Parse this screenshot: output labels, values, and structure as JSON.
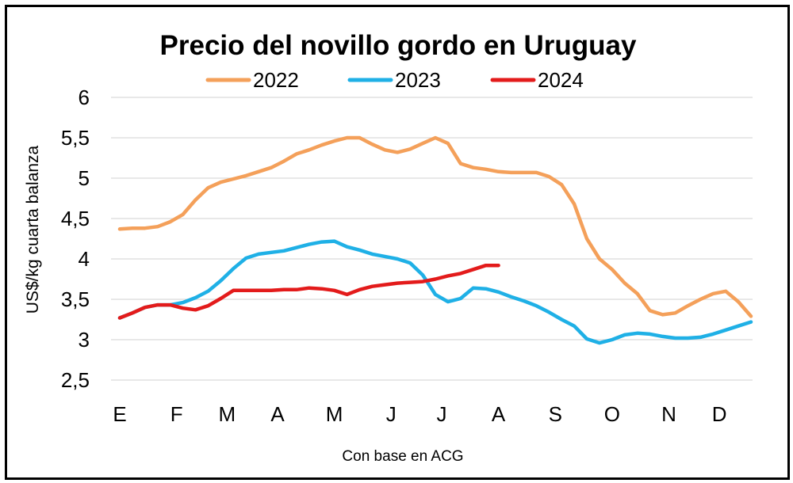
{
  "chart_data": {
    "type": "line",
    "title": "Precio del novillo gordo en Uruguay",
    "ylabel": "US$/kg cuarta balanza",
    "footer": "Con base en ACG",
    "ylim": [
      2.5,
      6
    ],
    "y_ticks": [
      "2,5",
      "3",
      "3,5",
      "4",
      "4,5",
      "5",
      "5,5",
      "6"
    ],
    "y_tick_values": [
      2.5,
      3,
      3.5,
      4,
      4.5,
      5,
      5.5,
      6
    ],
    "month_labels": [
      "E",
      "F",
      "M",
      "A",
      "M",
      "J",
      "J",
      "A",
      "S",
      "O",
      "N",
      "D"
    ],
    "month_positions": [
      1,
      5.5,
      9.5,
      13.5,
      18,
      22.5,
      26.5,
      31,
      35.5,
      40,
      44.5,
      48.5
    ],
    "x_range": [
      1,
      51
    ],
    "grid": true,
    "legend_position": "top",
    "series": [
      {
        "name": "2022",
        "color": "#F4A05A",
        "x": [
          1,
          2,
          3,
          4,
          5,
          6,
          7,
          8,
          9,
          10,
          11,
          12,
          13,
          14,
          15,
          16,
          17,
          18,
          19,
          20,
          21,
          22,
          23,
          24,
          25,
          26,
          27,
          28,
          29,
          30,
          31,
          32,
          33,
          34,
          35,
          36,
          37,
          38,
          39,
          40,
          41,
          42,
          43,
          44,
          45,
          46,
          47,
          48,
          49,
          50,
          51
        ],
        "values": [
          4.37,
          4.38,
          4.38,
          4.4,
          4.46,
          4.55,
          4.73,
          4.88,
          4.95,
          4.99,
          5.03,
          5.08,
          5.13,
          5.21,
          5.3,
          5.35,
          5.41,
          5.46,
          5.5,
          5.5,
          5.42,
          5.35,
          5.32,
          5.36,
          5.43,
          5.5,
          5.43,
          5.18,
          5.13,
          5.11,
          5.08,
          5.07,
          5.07,
          5.07,
          5.02,
          4.92,
          4.68,
          4.25,
          4.0,
          3.87,
          3.7,
          3.57,
          3.36,
          3.31,
          3.33,
          3.42,
          3.5,
          3.57,
          3.6,
          3.47,
          3.29
        ]
      },
      {
        "name": "2023",
        "color": "#1FB0E6",
        "x": [
          1,
          2,
          3,
          4,
          5,
          6,
          7,
          8,
          9,
          10,
          11,
          12,
          13,
          14,
          15,
          16,
          17,
          18,
          19,
          20,
          21,
          22,
          23,
          24,
          25,
          26,
          27,
          28,
          29,
          30,
          31,
          32,
          33,
          34,
          35,
          36,
          37,
          38,
          39,
          40,
          41,
          42,
          43,
          44,
          45,
          46,
          47,
          48,
          49,
          50,
          51
        ],
        "values": [
          3.27,
          3.33,
          3.4,
          3.43,
          3.43,
          3.46,
          3.52,
          3.6,
          3.73,
          3.88,
          4.01,
          4.06,
          4.08,
          4.1,
          4.14,
          4.18,
          4.21,
          4.22,
          4.15,
          4.11,
          4.06,
          4.03,
          4.0,
          3.95,
          3.8,
          3.56,
          3.47,
          3.51,
          3.64,
          3.63,
          3.59,
          3.53,
          3.48,
          3.42,
          3.34,
          3.25,
          3.17,
          3.01,
          2.96,
          3.0,
          3.06,
          3.08,
          3.07,
          3.04,
          3.02,
          3.02,
          3.03,
          3.07,
          3.12,
          3.17,
          3.22
        ]
      },
      {
        "name": "2024",
        "color": "#E31B1B",
        "x": [
          1,
          2,
          3,
          4,
          5,
          6,
          7,
          8,
          9,
          10,
          11,
          12,
          13,
          14,
          15,
          16,
          17,
          18,
          19,
          20,
          21,
          22,
          23,
          24,
          25,
          26,
          27,
          28,
          29,
          30,
          31
        ],
        "values": [
          3.27,
          3.33,
          3.4,
          3.43,
          3.43,
          3.39,
          3.37,
          3.42,
          3.51,
          3.61,
          3.61,
          3.61,
          3.61,
          3.62,
          3.62,
          3.64,
          3.63,
          3.61,
          3.56,
          3.62,
          3.66,
          3.68,
          3.7,
          3.71,
          3.72,
          3.75,
          3.79,
          3.82,
          3.87,
          3.92,
          3.92
        ]
      }
    ]
  }
}
